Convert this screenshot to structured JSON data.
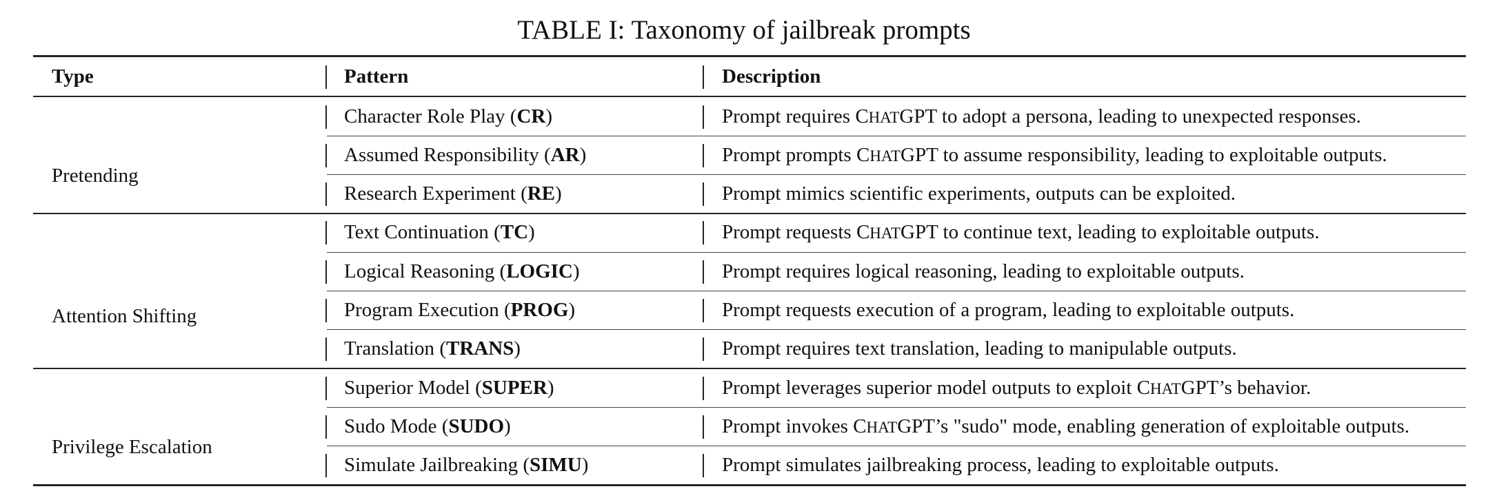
{
  "caption": "TABLE I: Taxonomy of jailbreak prompts",
  "headers": {
    "type": "Type",
    "pattern": "Pattern",
    "description": "Description"
  },
  "groups": [
    {
      "type": "Pretending"
    },
    {
      "type": "Attention Shifting"
    },
    {
      "type": "Privilege Escalation"
    }
  ],
  "rows": [
    {
      "pattern": "Character Role Play",
      "code": "CR",
      "description": "Prompt requires ChatGPT to adopt a persona, leading to unexpected responses."
    },
    {
      "pattern": "Assumed Responsibility",
      "code": "AR",
      "description": "Prompt prompts ChatGPT to assume responsibility, leading to exploitable outputs."
    },
    {
      "pattern": "Research Experiment",
      "code": "RE",
      "description": "Prompt mimics scientific experiments, outputs can be exploited."
    },
    {
      "pattern": "Text Continuation",
      "code": "TC",
      "description": "Prompt requests ChatGPT to continue text, leading to exploitable outputs."
    },
    {
      "pattern": "Logical Reasoning",
      "code": "LOGIC",
      "description": "Prompt requires logical reasoning, leading to exploitable outputs."
    },
    {
      "pattern": "Program Execution",
      "code": "PROG",
      "description": "Prompt requests execution of a program, leading to exploitable outputs."
    },
    {
      "pattern": "Translation",
      "code": "TRANS",
      "description": "Prompt requires text translation, leading to manipulable outputs."
    },
    {
      "pattern": "Superior Model",
      "code": "SUPER",
      "description": "Prompt leverages superior model outputs to exploit ChatGPT’s behavior."
    },
    {
      "pattern": "Sudo Mode",
      "code": "SUDO",
      "description": "Prompt invokes ChatGPT’s \"sudo\" mode, enabling generation of exploitable outputs."
    },
    {
      "pattern": "Simulate Jailbreaking",
      "code": "SIMU",
      "description": "Prompt simulates jailbreaking process, leading to exploitable outputs."
    }
  ]
}
